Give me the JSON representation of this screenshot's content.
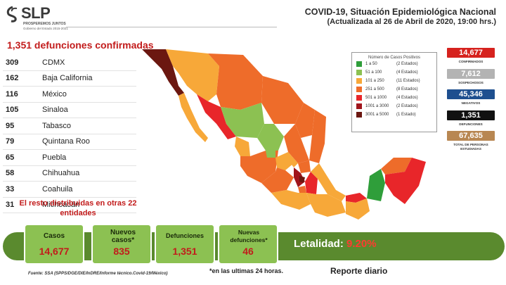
{
  "header": {
    "logo_text": "SLP",
    "logo_tagline": "PROSPEREMOS JUNTOS",
    "logo_subtitle": "Gobierno del Estado 2015-2021",
    "title_line1": "COVID-19, Situación Epidemiológica Nacional",
    "title_line2": "(Actualizada al 26 de Abril de 2020, 19:00 hrs.)"
  },
  "deaths": {
    "title": "1,351 defunciones confirmadas",
    "rows": [
      {
        "count": "309",
        "state": "CDMX"
      },
      {
        "count": "162",
        "state": "Baja California"
      },
      {
        "count": "116",
        "state": "México"
      },
      {
        "count": "105",
        "state": "Sinaloa"
      },
      {
        "count": "95",
        "state": "Tabasco"
      },
      {
        "count": "79",
        "state": "Quintana Roo"
      },
      {
        "count": "65",
        "state": "Puebla"
      },
      {
        "count": "58",
        "state": "Chihuahua"
      },
      {
        "count": "33",
        "state": "Coahuila"
      },
      {
        "count": "31",
        "state": "Michoacán"
      }
    ],
    "rest_note": "El resto distribuidas en otras 22 entidades"
  },
  "legend": {
    "title": "Número de Casos Positivos",
    "items": [
      {
        "range": "1 a 50",
        "states": "(2 Estados)",
        "color": "#2f9e3a"
      },
      {
        "range": "51 a 100",
        "states": "(4 Estados)",
        "color": "#8cc152"
      },
      {
        "range": "101 a 250",
        "states": "(11 Estados)",
        "color": "#f7a839"
      },
      {
        "range": "251 a 500",
        "states": "(8 Estados)",
        "color": "#ee6c2a"
      },
      {
        "range": "501 a 1000",
        "states": "(4 Estados)",
        "color": "#e8262a"
      },
      {
        "range": "1001 a 3000",
        "states": "(2 Estados)",
        "color": "#a0151c"
      },
      {
        "range": "3001 a 5000",
        "states": "(1 Estado)",
        "color": "#6b1710"
      }
    ]
  },
  "stats": [
    {
      "value": "14,677",
      "label": "CONFIRMADOS",
      "color": "#d6221e"
    },
    {
      "value": "7,612",
      "label": "SOSPECHOSOS",
      "color": "#b3b3b3"
    },
    {
      "value": "45,346",
      "label": "NEGATIVOS",
      "color": "#1e4f8f"
    },
    {
      "value": "1,351",
      "label": "DEFUNCIONES",
      "color": "#111111"
    },
    {
      "value": "67,635",
      "label": "TOTAL DE PERSONAS ESTUDIADAS",
      "color": "#b88752"
    }
  ],
  "summary": {
    "cases_label": "Casos",
    "cases_value": "14,677",
    "new_cases_label": "Nuevos casos*",
    "new_cases_value": "835",
    "deaths_label": "Defunciones",
    "deaths_value": "1,351",
    "new_deaths_label": "Nuevas defunciones*",
    "new_deaths_value": "46",
    "lethality_label": "Letalidad:",
    "lethality_value": "9.20%"
  },
  "footer": {
    "source": "Fuente: SSA (SPPS/DGE/DIE/InDRE/Informe técnico.Covid-19/México)",
    "footnote": "*en las ultimas 24 horas.",
    "report": "Reporte diario"
  }
}
